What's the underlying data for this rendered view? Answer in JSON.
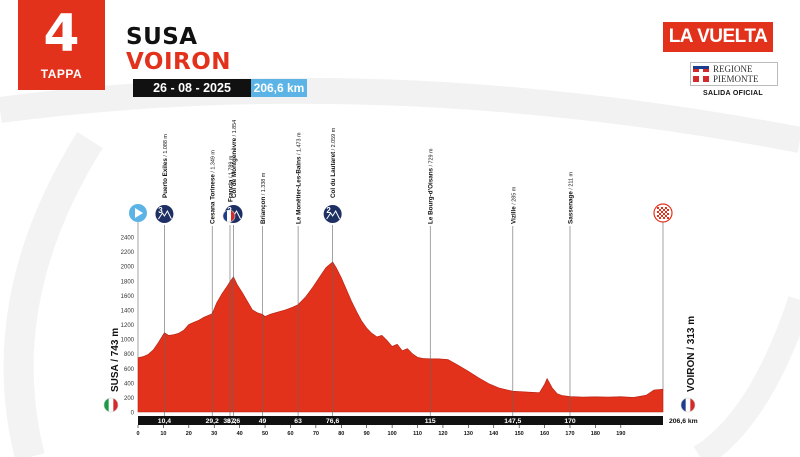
{
  "stage": {
    "number": "4",
    "label": "TAPPA"
  },
  "route": {
    "start": "SUSA",
    "finish": "VOIRON",
    "date": "26 - 08 - 2025",
    "distance": "206,6 km"
  },
  "branding": {
    "race_logo": "LA VUELTA",
    "partner_line1": "REGIONE",
    "partner_line2": "PIEMONTE",
    "partner_caption": "SALIDA OFICIAL"
  },
  "colors": {
    "profile_fill": "#e2321c",
    "accent_blue": "#5bb4e5",
    "marker_navy": "#1e2f64",
    "black": "#111111"
  },
  "endpoints": {
    "start_label": "SUSA / 743 m",
    "start_flag": "italy-flag-icon",
    "finish_label": "VOIRON / 313 m",
    "finish_flag": "france-flag-icon",
    "start_marker": "play-start-icon",
    "finish_marker": "checkered-flag-icon"
  },
  "chart_data": {
    "type": "area",
    "xlabel": "",
    "ylabel": "",
    "xlim": [
      0,
      206.6
    ],
    "ylim": [
      0,
      2400
    ],
    "grid": false,
    "y_ticks": [
      0,
      200,
      400,
      600,
      800,
      1000,
      1200,
      1400,
      1600,
      1800,
      2000,
      2200,
      2400
    ],
    "x_ticks": [
      0,
      10,
      20,
      30,
      40,
      50,
      60,
      70,
      80,
      90,
      100,
      110,
      120,
      130,
      140,
      150,
      160,
      170,
      180,
      190
    ],
    "km_labels": [
      {
        "km": 10.4,
        "label": "10,4"
      },
      {
        "km": 29.2,
        "label": "29,2"
      },
      {
        "km": 36.2,
        "label": "36,2"
      },
      {
        "km": 37.6,
        "label": "37,6"
      },
      {
        "km": 49,
        "label": "49"
      },
      {
        "km": 63,
        "label": "63"
      },
      {
        "km": 76.6,
        "label": "76,6"
      },
      {
        "km": 115,
        "label": "115"
      },
      {
        "km": 147.5,
        "label": "147,5"
      },
      {
        "km": 170,
        "label": "170"
      },
      {
        "km": 206.6,
        "label": "206,6 km"
      }
    ],
    "profile": {
      "x": [
        0,
        2,
        4,
        6,
        8,
        10.4,
        12,
        14,
        16,
        18,
        20,
        22,
        24,
        26,
        28,
        29.2,
        31,
        33,
        35,
        36.2,
        37.6,
        39,
        41,
        43,
        45,
        47,
        49,
        50,
        52,
        55,
        58,
        61,
        63,
        66,
        69,
        72,
        74,
        76.6,
        78,
        80,
        82,
        84,
        86,
        88,
        90,
        92,
        94,
        96,
        98,
        100,
        102,
        104,
        106,
        108,
        110,
        112,
        115,
        118,
        122,
        126,
        130,
        134,
        138,
        142,
        145,
        147.5,
        150,
        155,
        158,
        160,
        161,
        163,
        165,
        167,
        170,
        175,
        180,
        185,
        190,
        195,
        200,
        203,
        206.6
      ],
      "y": [
        743,
        760,
        790,
        850,
        950,
        1088,
        1050,
        1060,
        1080,
        1120,
        1200,
        1230,
        1260,
        1300,
        1330,
        1349,
        1500,
        1620,
        1720,
        1789,
        1854,
        1750,
        1640,
        1520,
        1400,
        1360,
        1338,
        1310,
        1340,
        1370,
        1400,
        1440,
        1473,
        1580,
        1720,
        1880,
        1980,
        2059,
        1980,
        1840,
        1680,
        1520,
        1380,
        1250,
        1150,
        1080,
        1030,
        1050,
        980,
        900,
        930,
        840,
        870,
        800,
        750,
        735,
        729,
        730,
        720,
        640,
        560,
        470,
        390,
        330,
        305,
        285,
        280,
        270,
        265,
        380,
        460,
        330,
        250,
        225,
        211,
        205,
        208,
        205,
        210,
        200,
        230,
        300,
        313
      ]
    },
    "waypoints": [
      {
        "km": 10.4,
        "name": "Puerto Exiles",
        "alt": "1.088 m",
        "category": "3"
      },
      {
        "km": 29.2,
        "name": "Cesana Torinese",
        "alt": "1.349 m"
      },
      {
        "km": 36.2,
        "name": "Francia",
        "alt": "1.789 m",
        "flag": "france-flag-icon"
      },
      {
        "km": 37.6,
        "name": "Col de Montgenèvre",
        "alt": "1.854",
        "category": "2"
      },
      {
        "km": 49,
        "name": "Briançon",
        "alt": "1.338 m"
      },
      {
        "km": 63,
        "name": "Le Monêtier-Les-Bains",
        "alt": "1.473 m"
      },
      {
        "km": 76.6,
        "name": "Col du Lautaret",
        "alt": "2.059 m",
        "category": "2"
      },
      {
        "km": 115,
        "name": "Le Bourg-d'Oisans",
        "alt": "729 m"
      },
      {
        "km": 147.5,
        "name": "Vizille",
        "alt": "285 m"
      },
      {
        "km": 170,
        "name": "Sassenage",
        "alt": "211 m"
      }
    ]
  }
}
